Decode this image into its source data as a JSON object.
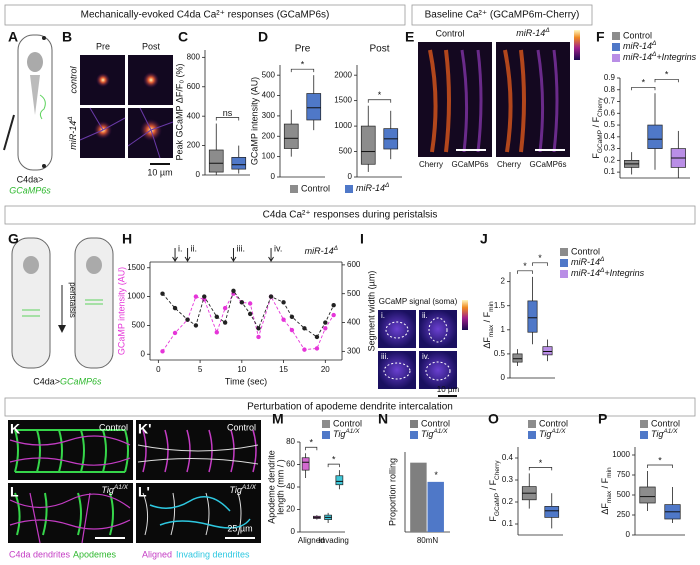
{
  "headers": {
    "mech": "Mechanically-evoked C4da Ca²⁺ responses (GCaMP6s)",
    "baseline": "Baseline Ca²⁺ (GCaMP6m-Cherry)",
    "peristalsis": "C4da Ca²⁺ responses during peristalsis",
    "apodeme": "Perturbation of apodeme dendrite intercalation"
  },
  "panel_labels": [
    "A",
    "B",
    "C",
    "D",
    "E",
    "F",
    "G",
    "H",
    "I",
    "J",
    "K",
    "K'",
    "L",
    "L'",
    "M",
    "N",
    "O",
    "P"
  ],
  "A": {
    "driver": "C4da>",
    "reporter": "GCaMP6s"
  },
  "B": {
    "columns": [
      "Pre",
      "Post"
    ],
    "rows": [
      "control",
      [
        {
          "text": "miR-14"
        },
        {
          "text": "Δ",
          "sup": true
        }
      ]
    ],
    "scale": "10 µm"
  },
  "C": {
    "type": "box",
    "ylabel": "Peak GCaMP ΔF/F₀ (%)",
    "ylim": [
      0,
      850
    ],
    "yticks": [
      0,
      200,
      400,
      600,
      800
    ],
    "boxes": [
      {
        "color": "#8c8c8c",
        "min": 0,
        "q1": 20,
        "median": 80,
        "q3": 170,
        "max": 350
      },
      {
        "color": "#4f78c8",
        "min": 10,
        "q1": 40,
        "median": 70,
        "q3": 120,
        "max": 200
      }
    ],
    "annotations": [
      "ns"
    ]
  },
  "D": {
    "ylabel": "GCaMP intensity (AU)",
    "charts": [
      {
        "type": "box",
        "title": "Pre",
        "ylim": [
          0,
          550
        ],
        "yticks": [
          0,
          100,
          200,
          300,
          400,
          500
        ],
        "boxes": [
          {
            "color": "#8c8c8c",
            "min": 100,
            "q1": 140,
            "median": 190,
            "q3": 260,
            "max": 330
          },
          {
            "color": "#4f78c8",
            "min": 230,
            "q1": 280,
            "median": 340,
            "q3": 410,
            "max": 500
          }
        ],
        "annotations": [
          "*"
        ]
      },
      {
        "type": "box",
        "title": "Post",
        "ylim": [
          0,
          2200
        ],
        "yticks": [
          0,
          500,
          1000,
          1500,
          2000
        ],
        "boxes": [
          {
            "color": "#8c8c8c",
            "min": 100,
            "q1": 250,
            "median": 500,
            "q3": 1000,
            "max": 1400
          },
          {
            "color": "#4f78c8",
            "min": 350,
            "q1": 550,
            "median": 750,
            "q3": 950,
            "max": 1300
          }
        ],
        "annotations": [
          "*"
        ]
      }
    ],
    "legend": [
      {
        "name": "Control",
        "color": "#8c8c8c"
      },
      {
        "name": [
          {
            "text": "miR-14"
          },
          {
            "text": "Δ",
            "sup": true
          }
        ],
        "color": "#4f78c8"
      }
    ]
  },
  "E": {
    "columns": [
      "Control",
      [
        {
          "text": "miR-14"
        },
        {
          "text": "Δ",
          "sup": true
        }
      ]
    ],
    "channels": [
      "Cherry",
      "GCaMP6s",
      "Cherry",
      "GCaMP6s"
    ]
  },
  "F": {
    "type": "box",
    "ylabel": [
      {
        "text": "F"
      },
      {
        "text": "GCaMP",
        "sub": true
      },
      {
        "text": " / F"
      },
      {
        "text": "Cherry",
        "sub": true
      }
    ],
    "ylim": [
      0.05,
      0.9
    ],
    "yticks": [
      0.1,
      0.2,
      0.3,
      0.4,
      0.5,
      0.6,
      0.7,
      0.8,
      0.9
    ],
    "boxes": [
      {
        "color": "#8c8c8c",
        "min": 0.08,
        "q1": 0.14,
        "median": 0.17,
        "q3": 0.2,
        "max": 0.27
      },
      {
        "color": "#4f78c8",
        "min": 0.12,
        "q1": 0.3,
        "median": 0.38,
        "q3": 0.5,
        "max": 0.77
      },
      {
        "color": "#b98ee6",
        "min": 0.05,
        "q1": 0.14,
        "median": 0.22,
        "q3": 0.3,
        "max": 0.45
      }
    ],
    "annotations": [
      "*",
      "*"
    ],
    "legend": [
      {
        "name": "Control",
        "color": "#8c8c8c"
      },
      {
        "name": [
          {
            "text": "miR-14"
          },
          {
            "text": "Δ",
            "sup": true
          }
        ],
        "color": "#4f78c8"
      },
      {
        "name": [
          {
            "text": "miR-14"
          },
          {
            "text": "Δ",
            "sup": true
          },
          {
            "text": "+Integrins"
          }
        ],
        "color": "#b98ee6"
      }
    ]
  },
  "G": {
    "label": "peristalsis",
    "driver": "C4da>",
    "reporter": "GCaMP6s"
  },
  "H": {
    "type": "line",
    "genotype": [
      {
        "text": "miR-14"
      },
      {
        "text": "Δ",
        "sup": true
      }
    ],
    "xlabel": "Time (sec)",
    "ylabel": "GCaMP intensity (AU)",
    "y2label": "Segment width (µm)",
    "xlim": [
      -1,
      22
    ],
    "xticks": [
      0,
      5,
      10,
      15,
      20
    ],
    "ylim": [
      -100,
      1600
    ],
    "yticks": [
      0,
      500,
      1000,
      1500
    ],
    "y2lim": [
      270,
      610
    ],
    "y2ticks": [
      300,
      400,
      500,
      600
    ],
    "x": [
      0.5,
      2,
      3.5,
      4.5,
      5.5,
      7,
      8,
      9,
      10,
      11,
      12,
      13.5,
      15,
      16,
      17.5,
      19,
      20,
      21
    ],
    "series": [
      {
        "name": "GCaMP",
        "color": "#e535d8",
        "values": [
          50,
          370,
          600,
          1000,
          950,
          380,
          800,
          1050,
          900,
          880,
          300,
          1000,
          600,
          420,
          80,
          100,
          450,
          680
        ]
      },
      {
        "name": "Segment width",
        "color": "#222222",
        "axis": "y2",
        "values": [
          500,
          450,
          410,
          390,
          490,
          420,
          400,
          510,
          470,
          430,
          380,
          490,
          470,
          420,
          380,
          350,
          400,
          460
        ]
      }
    ],
    "arrows": [
      {
        "x": 2,
        "label": "i."
      },
      {
        "x": 3.5,
        "label": "ii."
      },
      {
        "x": 9,
        "label": "iii."
      },
      {
        "x": 13.5,
        "label": "iv."
      }
    ]
  },
  "I": {
    "title": "GCaMP signal (soma)",
    "panels": [
      "i.",
      "ii.",
      "iii.",
      "iv."
    ],
    "scale": "10 µm"
  },
  "J": {
    "type": "box",
    "ylabel": [
      {
        "text": "ΔF"
      },
      {
        "text": "max",
        "sub": true
      },
      {
        "text": " / F"
      },
      {
        "text": "min",
        "sub": true
      }
    ],
    "ylim": [
      0,
      2.2
    ],
    "yticks": [
      0,
      0.5,
      1,
      1.5,
      2
    ],
    "boxes": [
      {
        "color": "#8c8c8c",
        "min": 0.25,
        "q1": 0.33,
        "median": 0.4,
        "q3": 0.5,
        "max": 0.6
      },
      {
        "color": "#4f78c8",
        "min": 0.7,
        "q1": 0.95,
        "median": 1.25,
        "q3": 1.6,
        "max": 2.1
      },
      {
        "color": "#b98ee6",
        "min": 0.35,
        "q1": 0.48,
        "median": 0.55,
        "q3": 0.65,
        "max": 0.8
      }
    ],
    "annotations": [
      "*",
      "*"
    ],
    "legend": [
      {
        "name": "Control",
        "color": "#8c8c8c"
      },
      {
        "name": [
          {
            "text": "miR-14"
          },
          {
            "text": "Δ",
            "sup": true
          }
        ],
        "color": "#4f78c8"
      },
      {
        "name": [
          {
            "text": "miR-14"
          },
          {
            "text": "Δ",
            "sup": true
          },
          {
            "text": "+Integrins"
          }
        ],
        "color": "#b98ee6"
      }
    ]
  },
  "K": {
    "control": "Control",
    "control2": "Control",
    "mutant": [
      {
        "text": "Tig"
      },
      {
        "text": "A1/X",
        "sup": true
      }
    ],
    "mutant2": [
      {
        "text": "Tig"
      },
      {
        "text": "A1/X",
        "sup": true
      }
    ],
    "scale": "25 µm",
    "legend1": [
      "C4da dendrites",
      "Apodemes"
    ],
    "legend2": [
      "Aligned",
      "Invading dendrites"
    ]
  },
  "M": {
    "type": "box",
    "ylabel": [
      "Apodeme dendrite",
      "length (mm / )"
    ],
    "categories": [
      "Aligned",
      "Invading"
    ],
    "ylim": [
      0,
      80
    ],
    "yticks": [
      0,
      20,
      40,
      60,
      80
    ],
    "boxes": [
      {
        "color": "#d36ad0",
        "min": 48,
        "q1": 55,
        "median": 62,
        "q3": 66,
        "max": 70
      },
      {
        "color": "#d36ad0",
        "min": 11,
        "q1": 12,
        "median": 13,
        "q3": 14,
        "max": 15
      },
      {
        "color": "#3fc7d8",
        "min": 8,
        "q1": 11,
        "median": 13,
        "q3": 15,
        "max": 17
      },
      {
        "color": "#3fc7d8",
        "min": 38,
        "q1": 42,
        "median": 45,
        "q3": 50,
        "max": 55
      }
    ],
    "annotations": [
      "*",
      "*"
    ],
    "legend": [
      {
        "name": "Control",
        "color": "#8c8c8c"
      },
      {
        "name": [
          {
            "text": "Tig"
          },
          {
            "text": "A1/X",
            "sup": true
          }
        ],
        "color": "#4f78c8"
      }
    ]
  },
  "N": {
    "type": "bar",
    "ylabel": "Proportion rolling",
    "categories": [
      "80mN"
    ],
    "ylim": [
      0,
      0.75
    ],
    "values": [
      0.65,
      0.47
    ],
    "annotations": [
      "*"
    ],
    "legend": [
      {
        "name": "Control",
        "color": "#7f7f7f"
      },
      {
        "name": [
          {
            "text": "Tig"
          },
          {
            "text": "A1/X",
            "sup": true
          }
        ],
        "color": "#4f78c8"
      }
    ]
  },
  "O": {
    "type": "box",
    "ylabel": [
      {
        "text": "F"
      },
      {
        "text": "GCaMP",
        "sub": true
      },
      {
        "text": " / F"
      },
      {
        "text": "Cherry",
        "sub": true
      }
    ],
    "ylim": [
      0.05,
      0.45
    ],
    "yticks": [
      0.1,
      0.2,
      0.3,
      0.4
    ],
    "boxes": [
      {
        "color": "#8c8c8c",
        "min": 0.17,
        "q1": 0.21,
        "median": 0.24,
        "q3": 0.27,
        "max": 0.33
      },
      {
        "color": "#4f78c8",
        "min": 0.08,
        "q1": 0.13,
        "median": 0.16,
        "q3": 0.18,
        "max": 0.24
      }
    ],
    "annotations": [
      "*"
    ],
    "legend": [
      {
        "name": "Control",
        "color": "#8c8c8c"
      },
      {
        "name": [
          {
            "text": "Tig"
          },
          {
            "text": "A1/X",
            "sup": true
          }
        ],
        "color": "#4f78c8"
      }
    ]
  },
  "P": {
    "type": "box",
    "ylabel": [
      {
        "text": "ΔF"
      },
      {
        "text": "max",
        "sub": true
      },
      {
        "text": " / F"
      },
      {
        "text": "min",
        "sub": true
      }
    ],
    "ylim": [
      0,
      1100
    ],
    "yticks": [
      0,
      250,
      500,
      750,
      1000
    ],
    "boxes": [
      {
        "color": "#8c8c8c",
        "min": 300,
        "q1": 400,
        "median": 480,
        "q3": 600,
        "max": 800
      },
      {
        "color": "#4f78c8",
        "min": 150,
        "q1": 200,
        "median": 290,
        "q3": 380,
        "max": 600
      }
    ],
    "annotations": [
      "*"
    ],
    "legend": [
      {
        "name": "Control",
        "color": "#8c8c8c"
      },
      {
        "name": [
          {
            "text": "Tig"
          },
          {
            "text": "A1/X",
            "sup": true
          }
        ],
        "color": "#4f78c8"
      }
    ]
  }
}
